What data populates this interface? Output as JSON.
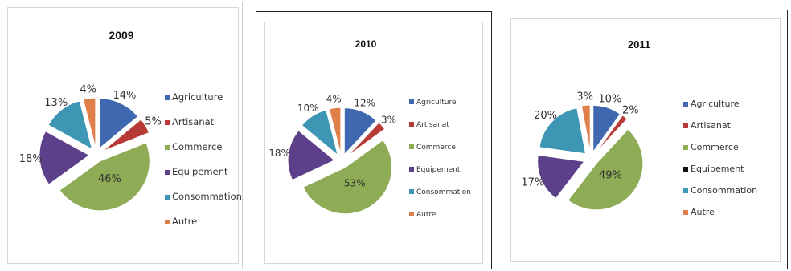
{
  "chart_data": [
    {
      "type": "pie",
      "title": "2009",
      "categories": [
        "Agriculture",
        "Artisanat",
        "Commerce",
        "Equipement",
        "Consommation",
        "Autre"
      ],
      "values": [
        14,
        5,
        46,
        18,
        13,
        4
      ],
      "value_labels": [
        "14%",
        "5%",
        "46%",
        "18%",
        "13%",
        "4%"
      ],
      "exploded": true,
      "legend": "right"
    },
    {
      "type": "pie",
      "title": "2010",
      "categories": [
        "Agriculture",
        "Artisanat",
        "Commerce",
        "Equipement",
        "Consommation",
        "Autre"
      ],
      "values": [
        12,
        3,
        53,
        18,
        10,
        4
      ],
      "value_labels": [
        "12%",
        "3%",
        "53%",
        "18%",
        "10%",
        "4%"
      ],
      "exploded": true,
      "legend": "right"
    },
    {
      "type": "pie",
      "title": "2011",
      "categories": [
        "Agriculture",
        "Artisanat",
        "Commerce",
        "Equipement",
        "Consommation",
        "Autre"
      ],
      "values": [
        10,
        2,
        49,
        17,
        20,
        3
      ],
      "value_labels": [
        "10%",
        "2%",
        "49%",
        "17%",
        "20%",
        "3%"
      ],
      "exploded": true,
      "legend": "right"
    }
  ],
  "colors": {
    "Agriculture": "#3f68b0",
    "Artisanat": "#b83a36",
    "Commerce": "#8eab55",
    "Equipement": "#5e3f8a",
    "Consommation": "#3d96b4",
    "Autre": "#e07f4a",
    "legend_marker_equipement_2011": "#111111"
  }
}
